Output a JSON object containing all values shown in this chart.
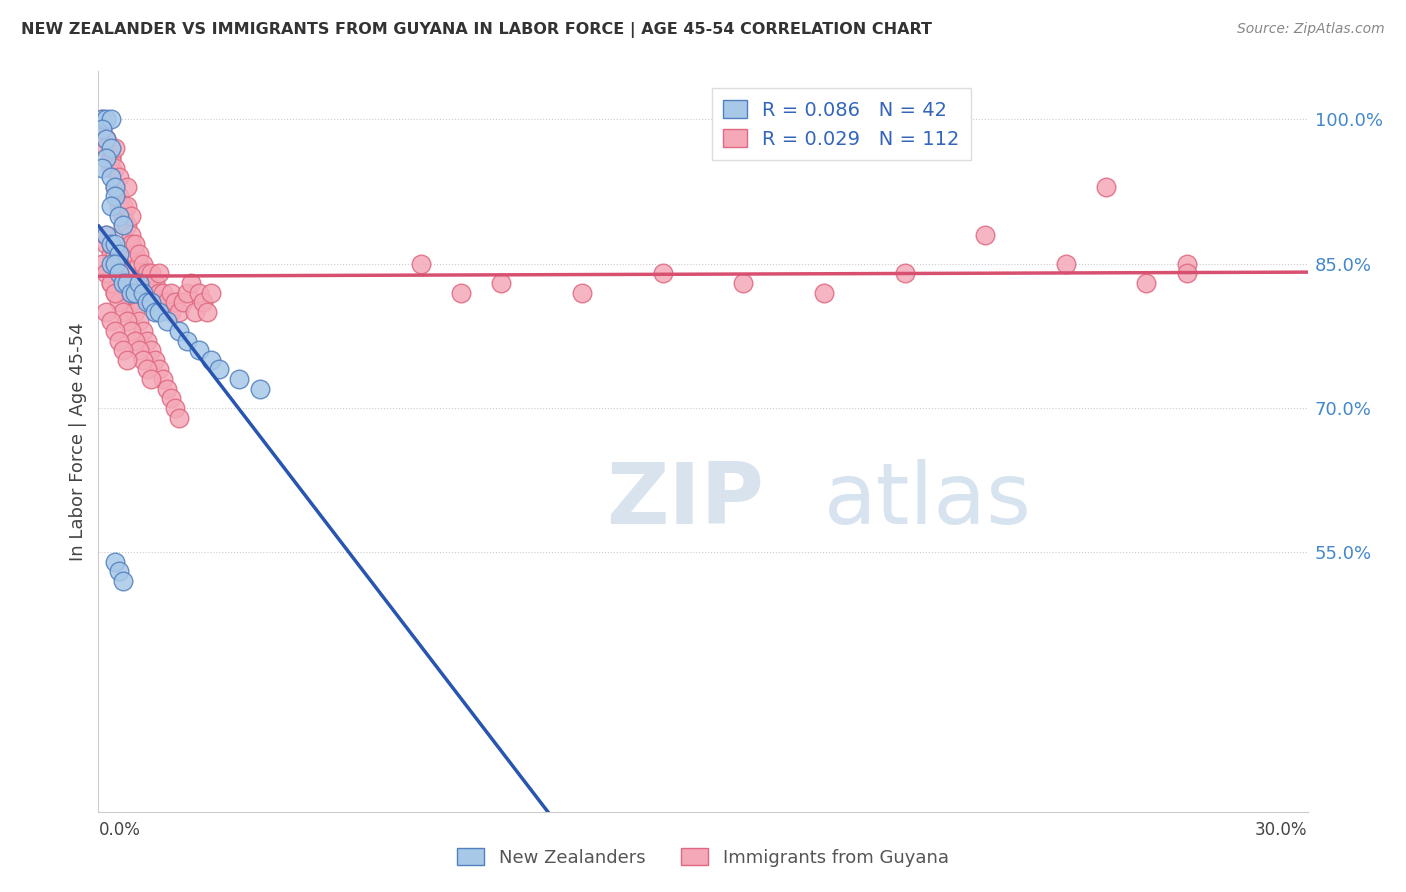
{
  "title": "NEW ZEALANDER VS IMMIGRANTS FROM GUYANA IN LABOR FORCE | AGE 45-54 CORRELATION CHART",
  "source": "Source: ZipAtlas.com",
  "ylabel": "In Labor Force | Age 45-54",
  "xmin": 0.0,
  "xmax": 0.3,
  "ymin": 0.28,
  "ymax": 1.05,
  "blue_R": 0.086,
  "blue_N": 42,
  "pink_R": 0.029,
  "pink_N": 112,
  "blue_color": "#a8c8e8",
  "pink_color": "#f4a8b8",
  "blue_edge_color": "#5080c0",
  "pink_edge_color": "#e06880",
  "blue_line_color": "#2855b0",
  "pink_line_color": "#d85070",
  "blue_dashed_color": "#90b8e0",
  "legend_label_blue": "New Zealanders",
  "legend_label_pink": "Immigrants from Guyana",
  "watermark_zip": "ZIP",
  "watermark_atlas": "atlas",
  "blue_scatter_x": [
    0.001,
    0.002,
    0.003,
    0.001,
    0.002,
    0.003,
    0.002,
    0.001,
    0.003,
    0.004,
    0.004,
    0.003,
    0.005,
    0.006,
    0.002,
    0.003,
    0.004,
    0.005,
    0.003,
    0.004,
    0.005,
    0.006,
    0.007,
    0.008,
    0.009,
    0.01,
    0.011,
    0.012,
    0.013,
    0.014,
    0.015,
    0.017,
    0.02,
    0.022,
    0.025,
    0.028,
    0.03,
    0.035,
    0.04,
    0.004,
    0.005,
    0.006
  ],
  "blue_scatter_y": [
    1.0,
    1.0,
    1.0,
    0.99,
    0.98,
    0.97,
    0.96,
    0.95,
    0.94,
    0.93,
    0.92,
    0.91,
    0.9,
    0.89,
    0.88,
    0.87,
    0.87,
    0.86,
    0.85,
    0.85,
    0.84,
    0.83,
    0.83,
    0.82,
    0.82,
    0.83,
    0.82,
    0.81,
    0.81,
    0.8,
    0.8,
    0.79,
    0.78,
    0.77,
    0.76,
    0.75,
    0.74,
    0.73,
    0.72,
    0.54,
    0.53,
    0.52
  ],
  "pink_scatter_x": [
    0.001,
    0.001,
    0.002,
    0.002,
    0.002,
    0.003,
    0.003,
    0.003,
    0.004,
    0.004,
    0.004,
    0.005,
    0.005,
    0.005,
    0.006,
    0.006,
    0.006,
    0.007,
    0.007,
    0.007,
    0.008,
    0.008,
    0.008,
    0.009,
    0.009,
    0.01,
    0.01,
    0.011,
    0.011,
    0.012,
    0.012,
    0.013,
    0.013,
    0.014,
    0.015,
    0.015,
    0.016,
    0.016,
    0.017,
    0.018,
    0.018,
    0.019,
    0.02,
    0.021,
    0.022,
    0.023,
    0.024,
    0.025,
    0.026,
    0.027,
    0.028,
    0.002,
    0.003,
    0.004,
    0.005,
    0.006,
    0.007,
    0.008,
    0.009,
    0.01,
    0.011,
    0.012,
    0.013,
    0.014,
    0.015,
    0.016,
    0.017,
    0.018,
    0.019,
    0.02,
    0.003,
    0.004,
    0.005,
    0.006,
    0.007,
    0.008,
    0.009,
    0.01,
    0.011,
    0.012,
    0.013,
    0.002,
    0.003,
    0.004,
    0.005,
    0.006,
    0.007,
    0.001,
    0.002,
    0.003,
    0.004,
    0.002,
    0.003,
    0.004,
    0.005,
    0.006,
    0.007,
    0.008,
    0.25,
    0.27,
    0.22,
    0.2,
    0.18,
    0.16,
    0.14,
    0.12,
    0.1,
    0.09,
    0.08,
    0.27,
    0.26,
    0.24
  ],
  "pink_scatter_y": [
    1.0,
    0.99,
    0.98,
    0.98,
    0.97,
    0.96,
    0.95,
    0.96,
    0.97,
    0.95,
    0.93,
    0.92,
    0.94,
    0.91,
    0.9,
    0.91,
    0.89,
    0.93,
    0.91,
    0.89,
    0.88,
    0.9,
    0.87,
    0.86,
    0.87,
    0.85,
    0.86,
    0.84,
    0.85,
    0.83,
    0.84,
    0.82,
    0.84,
    0.83,
    0.82,
    0.84,
    0.81,
    0.82,
    0.81,
    0.82,
    0.8,
    0.81,
    0.8,
    0.81,
    0.82,
    0.83,
    0.8,
    0.82,
    0.81,
    0.8,
    0.82,
    0.87,
    0.86,
    0.85,
    0.84,
    0.83,
    0.82,
    0.81,
    0.8,
    0.79,
    0.78,
    0.77,
    0.76,
    0.75,
    0.74,
    0.73,
    0.72,
    0.71,
    0.7,
    0.69,
    0.83,
    0.82,
    0.81,
    0.8,
    0.79,
    0.78,
    0.77,
    0.76,
    0.75,
    0.74,
    0.73,
    0.8,
    0.79,
    0.78,
    0.77,
    0.76,
    0.75,
    0.85,
    0.84,
    0.83,
    0.82,
    0.88,
    0.87,
    0.86,
    0.85,
    0.84,
    0.83,
    0.82,
    0.93,
    0.85,
    0.88,
    0.84,
    0.82,
    0.83,
    0.84,
    0.82,
    0.83,
    0.82,
    0.85,
    0.84,
    0.83,
    0.85
  ]
}
